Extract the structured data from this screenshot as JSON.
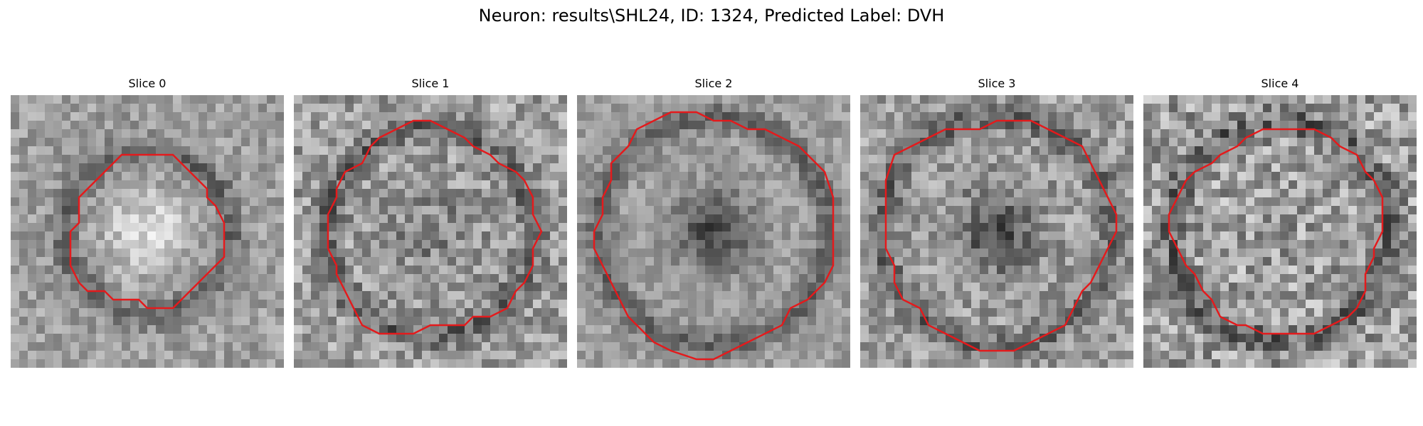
{
  "figure": {
    "title": "Neuron: results\\SHL24, ID: 1324, Predicted Label: DVH",
    "contour_color": "#e41a1c"
  },
  "panels": [
    {
      "title": "Slice 0",
      "center": "bright",
      "ring_radius": 0.3,
      "contour_radius": 0.28,
      "noise": 0.14
    },
    {
      "title": "Slice 1",
      "center": "mixed",
      "ring_radius": 0.38,
      "contour_radius": 0.38,
      "noise": 0.2
    },
    {
      "title": "Slice 2",
      "center": "dark",
      "ring_radius": 0.42,
      "contour_radius": 0.44,
      "noise": 0.12
    },
    {
      "title": "Slice 3",
      "center": "dark",
      "ring_radius": 0.42,
      "contour_radius": 0.42,
      "noise": 0.18
    },
    {
      "title": "Slice 4",
      "center": "noisy",
      "ring_radius": 0.4,
      "contour_radius": 0.38,
      "noise": 0.24
    }
  ]
}
